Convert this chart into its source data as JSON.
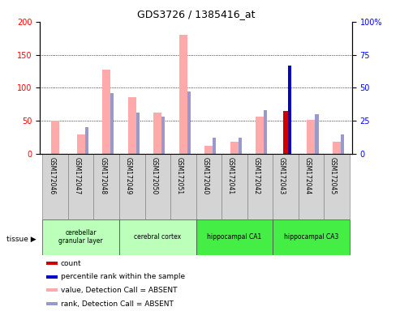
{
  "title": "GDS3726 / 1385416_at",
  "samples": [
    "GSM172046",
    "GSM172047",
    "GSM172048",
    "GSM172049",
    "GSM172050",
    "GSM172051",
    "GSM172040",
    "GSM172041",
    "GSM172042",
    "GSM172043",
    "GSM172044",
    "GSM172045"
  ],
  "tissue_groups": [
    {
      "label": "cerebellar\ngranular layer",
      "start": 0,
      "end": 3,
      "color": "#bbffbb"
    },
    {
      "label": "cerebral cortex",
      "start": 3,
      "end": 6,
      "color": "#bbffbb"
    },
    {
      "label": "hippocampal CA1",
      "start": 6,
      "end": 9,
      "color": "#44ee44"
    },
    {
      "label": "hippocampal CA3",
      "start": 9,
      "end": 12,
      "color": "#44ee44"
    }
  ],
  "value_absent": [
    50,
    30,
    127,
    86,
    62,
    180,
    12,
    18,
    57,
    null,
    52,
    19
  ],
  "rank_absent_pct": [
    null,
    20,
    46,
    31,
    28,
    47,
    12,
    12,
    33,
    null,
    30,
    15
  ],
  "count": [
    null,
    null,
    null,
    null,
    null,
    null,
    null,
    null,
    null,
    65,
    null,
    null
  ],
  "percentile_rank_pct": [
    null,
    null,
    null,
    null,
    null,
    null,
    null,
    null,
    null,
    67,
    null,
    null
  ],
  "ylim_left": [
    0,
    200
  ],
  "ylim_right": [
    0,
    100
  ],
  "yticks_left": [
    0,
    50,
    100,
    150,
    200
  ],
  "yticks_right": [
    0,
    25,
    50,
    75,
    100
  ],
  "yticklabels_right": [
    "0",
    "25",
    "50",
    "75",
    "100%"
  ],
  "color_count": "#cc0000",
  "color_percentile": "#0000cc",
  "color_value_absent": "#ffaaaa",
  "color_rank_absent": "#9999cc",
  "legend_items": [
    {
      "color": "#cc0000",
      "label": "count"
    },
    {
      "color": "#0000cc",
      "label": "percentile rank within the sample"
    },
    {
      "color": "#ffaaaa",
      "label": "value, Detection Call = ABSENT"
    },
    {
      "color": "#9999cc",
      "label": "rank, Detection Call = ABSENT"
    }
  ]
}
